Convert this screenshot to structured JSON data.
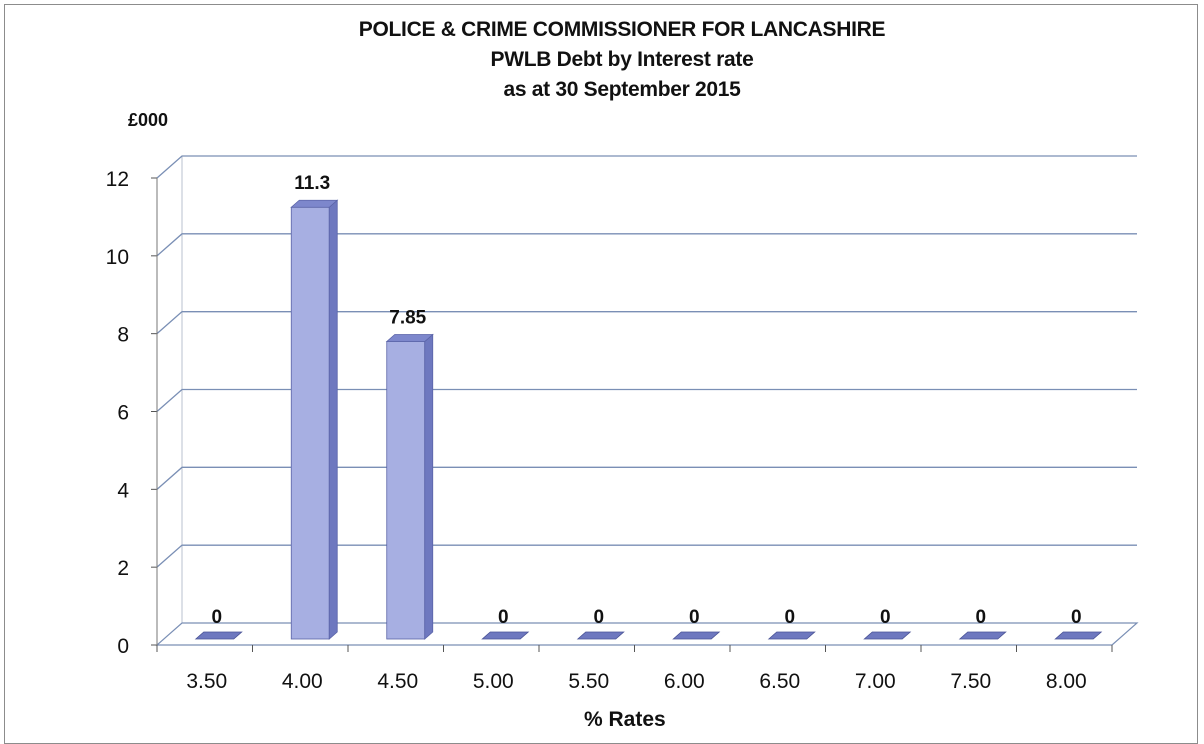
{
  "chart_data": {
    "type": "bar",
    "title": "POLICE & CRIME COMMISSIONER  FOR LANCASHIRE",
    "subtitle": [
      "PWLB Debt by Interest rate",
      "as at 30 September 2015"
    ],
    "y_unit_label": "£000",
    "xlabel": "% Rates",
    "ylabel": "",
    "categories": [
      "3.50",
      "4.00",
      "4.50",
      "5.00",
      "5.50",
      "6.00",
      "6.50",
      "7.00",
      "7.50",
      "8.00"
    ],
    "values": [
      0,
      11.3,
      7.85,
      0,
      0,
      0,
      0,
      0,
      0,
      0
    ],
    "data_labels": [
      "0",
      "11.3",
      "7.85",
      "0",
      "0",
      "0",
      "0",
      "0",
      "0",
      "0"
    ],
    "ylim": [
      0,
      12
    ],
    "yticks": [
      "0",
      "2",
      "4",
      "6",
      "8",
      "10",
      "12"
    ],
    "grid": true,
    "legend": "none",
    "style": "3d-column",
    "colors": {
      "bar_front": "#a7afe2",
      "bar_side": "#6e78bf",
      "bar_top": "#7d87cc",
      "gridline": "#7a8fb5"
    }
  }
}
